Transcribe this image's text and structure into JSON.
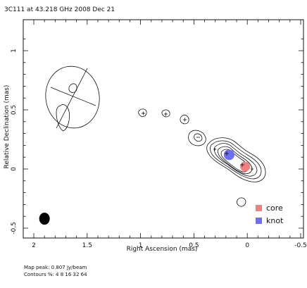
{
  "chart_data": {
    "type": "contour",
    "title": "3C111 at 43.218 GHz 2008 Dec 21",
    "xlabel": "Right Ascension  (mas)",
    "ylabel": "Relative Declination  (mas)",
    "xlim": [
      2.0,
      -0.5
    ],
    "ylim": [
      -0.55,
      1.2
    ],
    "x_ticks": [
      2,
      1.5,
      1,
      0.5,
      0,
      -0.5
    ],
    "x_tick_labels": [
      "2",
      "1.5",
      "1",
      "0.5",
      "0",
      "-0.5"
    ],
    "y_ticks": [
      1,
      0.5,
      0,
      -0.5
    ],
    "y_tick_labels": [
      "1",
      "0.5",
      "0",
      "-0.5"
    ],
    "footnote_peak": "Map peak: 0.807 Jy/beam",
    "footnote_contours": "Contours %: 4 8 16 32 64",
    "contour_levels_percent": [
      4,
      8,
      16,
      32,
      64
    ],
    "components": [
      {
        "name": "core",
        "x": 0.02,
        "y": 0.02,
        "color": "#f08080"
      },
      {
        "name": "knot",
        "x": 0.17,
        "y": 0.12,
        "color": "#6f6ff2"
      }
    ],
    "beam": {
      "x": 1.9,
      "y": -0.42
    },
    "legend": [
      {
        "label": "core",
        "color": "#f08080"
      },
      {
        "label": "knot",
        "color": "#6f6ff2"
      }
    ]
  }
}
